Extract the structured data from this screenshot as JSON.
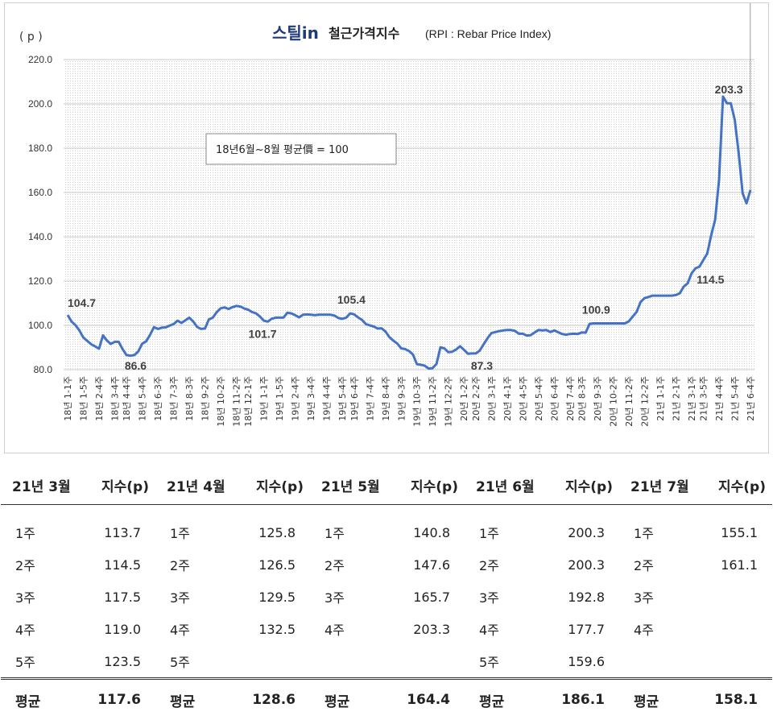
{
  "chart_data": {
    "type": "line",
    "title_brand": "스틸in",
    "title": "철근가격지수",
    "title_suffix": "(RPI : Rebar Price Index)",
    "ylabel": "( p )",
    "ylim": [
      80,
      220
    ],
    "yticks": [
      "80.0",
      "100.0",
      "120.0",
      "140.0",
      "160.0",
      "180.0",
      "200.0",
      "220.0"
    ],
    "grid": true,
    "annotation_box": "18년6월~8월 평균價 = 100",
    "line_color": "#4472c4",
    "x_tick_labels": [
      "18년 1-1주",
      "18년 1-5주",
      "18년 2-4주",
      "18년 3-4주",
      "18년 4-4주",
      "18년 5-4주",
      "18년 6-3주",
      "18년 7-3주",
      "18년 8-3주",
      "18년 9-2주",
      "18년 10-2주",
      "18년 11-2주",
      "18년 12-1주",
      "19년 1-1주",
      "19년 1-5주",
      "19년 2-4주",
      "19년 3-4주",
      "19년 4-4주",
      "19년 5-4주",
      "19년 6-4주",
      "19년 7-4주",
      "19년 8-4주",
      "19년 9-3주",
      "19년 10-3주",
      "19년 11-2주",
      "19년 12-2주",
      "20년 1-2주",
      "20년 2-2주",
      "20년 3-1주",
      "20년 4-1주",
      "20년 4-5주",
      "20년 5-4주",
      "20년 6-4주",
      "20년 7-4주",
      "20년 8-3주",
      "20년 9-3주",
      "20년 10-2주",
      "20년 11-2주",
      "20년 12-2주",
      "21년 1-1주",
      "21년 2-1주",
      "21년 3-1주",
      "21년 3-5주",
      "21년 4-4주",
      "21년 5-4주",
      "21년 6-4주"
    ],
    "values": [
      104.7,
      101.7,
      100.1,
      97.7,
      94.5,
      93.0,
      91.5,
      90.5,
      89.5,
      95.5,
      93.2,
      91.6,
      92.6,
      92.6,
      89.3,
      86.6,
      86.3,
      86.6,
      88.2,
      91.7,
      92.8,
      95.7,
      99.2,
      98.4,
      99.0,
      99.1,
      99.9,
      100.6,
      102.1,
      101.1,
      102.3,
      103.5,
      101.7,
      99.3,
      98.4,
      98.6,
      102.7,
      103.5,
      106.0,
      107.7,
      108.1,
      107.4,
      108.2,
      108.8,
      108.5,
      107.6,
      107.1,
      106.0,
      105.4,
      104.0,
      102.1,
      101.7,
      103.0,
      103.5,
      103.5,
      103.5,
      105.7,
      105.4,
      104.6,
      103.6,
      104.8,
      104.9,
      104.8,
      104.6,
      104.8,
      104.8,
      104.8,
      104.8,
      104.4,
      103.3,
      103.0,
      103.5,
      105.4,
      105.0,
      103.6,
      102.5,
      100.6,
      100.0,
      99.5,
      98.6,
      98.7,
      97.2,
      94.7,
      93.1,
      91.8,
      89.6,
      89.3,
      88.4,
      86.8,
      82.5,
      82.2,
      81.8,
      80.5,
      80.7,
      82.6,
      90.1,
      89.6,
      87.9,
      88.1,
      89.1,
      90.6,
      89.0,
      87.2,
      87.3,
      87.3,
      88.6,
      91.4,
      94.2,
      96.5,
      97.0,
      97.4,
      97.7,
      97.9,
      97.9,
      97.5,
      96.2,
      96.2,
      95.4,
      95.6,
      96.8,
      97.9,
      97.7,
      97.9,
      97.0,
      97.7,
      96.9,
      96.1,
      95.8,
      96.1,
      96.2,
      96.1,
      96.8,
      96.7,
      100.7,
      100.9,
      100.9,
      100.9,
      100.9,
      100.9,
      100.9,
      100.9,
      100.9,
      100.9,
      101.8,
      104.0,
      106.1,
      110.5,
      112.3,
      112.8,
      113.4,
      113.4,
      113.4,
      113.4,
      113.4,
      113.4,
      113.7,
      114.5,
      117.5,
      119.0,
      123.5,
      125.8,
      126.5,
      129.5,
      132.5,
      140.8,
      147.6,
      165.7,
      203.3,
      200.3,
      200.3,
      192.8,
      177.7,
      159.6,
      155.1,
      161.1
    ],
    "data_labels": [
      {
        "text": "104.7",
        "index": 0
      },
      {
        "text": "86.6",
        "index": 17
      },
      {
        "text": "101.7",
        "index": 51
      },
      {
        "text": "105.4",
        "index": 72
      },
      {
        "text": "87.3",
        "index": 104
      },
      {
        "text": "100.9",
        "index": 136
      },
      {
        "text": "114.5",
        "index": 157
      },
      {
        "text": "203.3",
        "index": 169
      },
      {
        "text": "161.1",
        "index": 176
      },
      {
        "text": "155.1",
        "index": 175
      }
    ]
  },
  "table": {
    "headers": [
      "21년 3월",
      "지수(p)",
      "21년 4월",
      "지수(p)",
      "21년 5월",
      "지수(p)",
      "21년 6월",
      "지수(p)",
      "21년 7월",
      "지수(p)"
    ],
    "rows": [
      [
        "1주",
        "113.7",
        "1주",
        "125.8",
        "1주",
        "140.8",
        "1주",
        "200.3",
        "1주",
        "155.1"
      ],
      [
        "2주",
        "114.5",
        "2주",
        "126.5",
        "2주",
        "147.6",
        "2주",
        "200.3",
        "2주",
        "161.1"
      ],
      [
        "3주",
        "117.5",
        "3주",
        "129.5",
        "3주",
        "165.7",
        "3주",
        "192.8",
        "3주",
        ""
      ],
      [
        "4주",
        "119.0",
        "4주",
        "132.5",
        "4주",
        "203.3",
        "4주",
        "177.7",
        "4주",
        ""
      ],
      [
        "5주",
        "123.5",
        "5주",
        "",
        "",
        "",
        "5주",
        "159.6",
        "",
        ""
      ]
    ],
    "average": [
      "평균",
      "117.6",
      "평균",
      "128.6",
      "평균",
      "164.4",
      "평균",
      "186.1",
      "평균",
      "158.1"
    ]
  }
}
